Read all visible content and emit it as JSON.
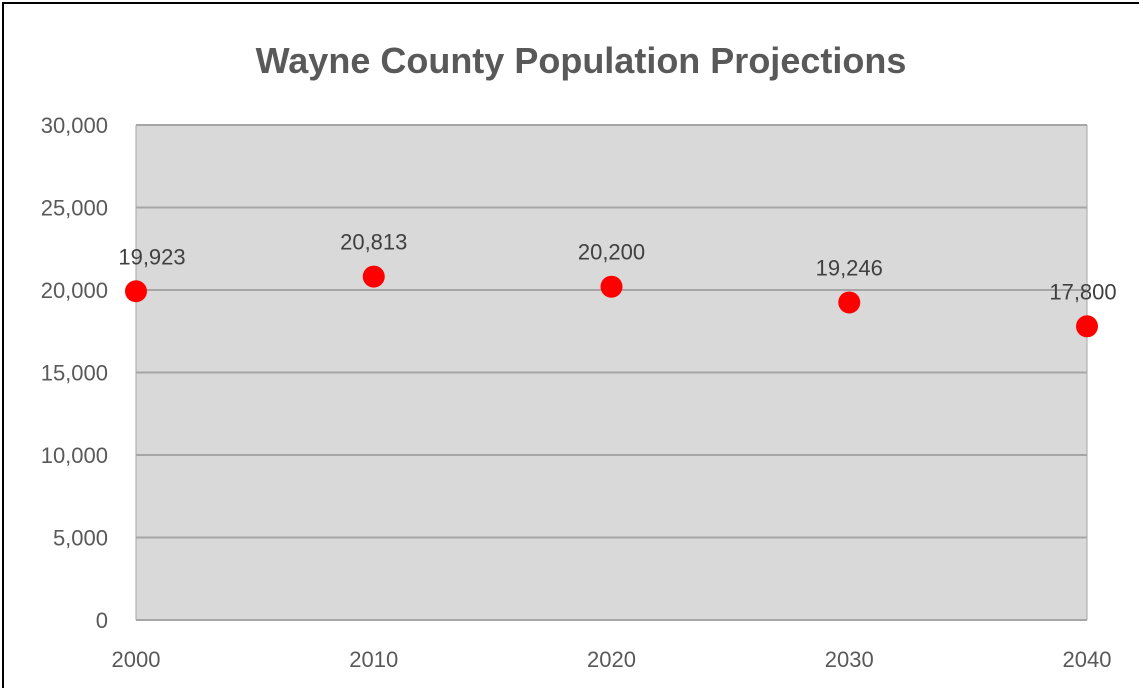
{
  "chart_data": {
    "type": "scatter",
    "title": "Wayne County Population Projections",
    "xlabel": "",
    "ylabel": "",
    "x": [
      2000,
      2010,
      2020,
      2030,
      2040
    ],
    "y": [
      19923,
      20813,
      20200,
      19246,
      17800
    ],
    "data_labels": [
      "19,923",
      "20,813",
      "20,200",
      "19,246",
      "17,800"
    ],
    "x_tick_labels": [
      "2000",
      "2010",
      "2020",
      "2030",
      "2040"
    ],
    "y_tick_labels": [
      "0",
      "5,000",
      "10,000",
      "15,000",
      "20,000",
      "25,000",
      "30,000"
    ],
    "y_ticks": [
      0,
      5000,
      10000,
      15000,
      20000,
      25000,
      30000
    ],
    "xlim": [
      2000,
      2040
    ],
    "ylim": [
      0,
      30000
    ],
    "grid": true,
    "legend": "none",
    "colors": {
      "marker": "#ff0000",
      "plot_background": "#d9d9d9",
      "gridline": "#a6a6a6",
      "text": "#595959"
    }
  }
}
